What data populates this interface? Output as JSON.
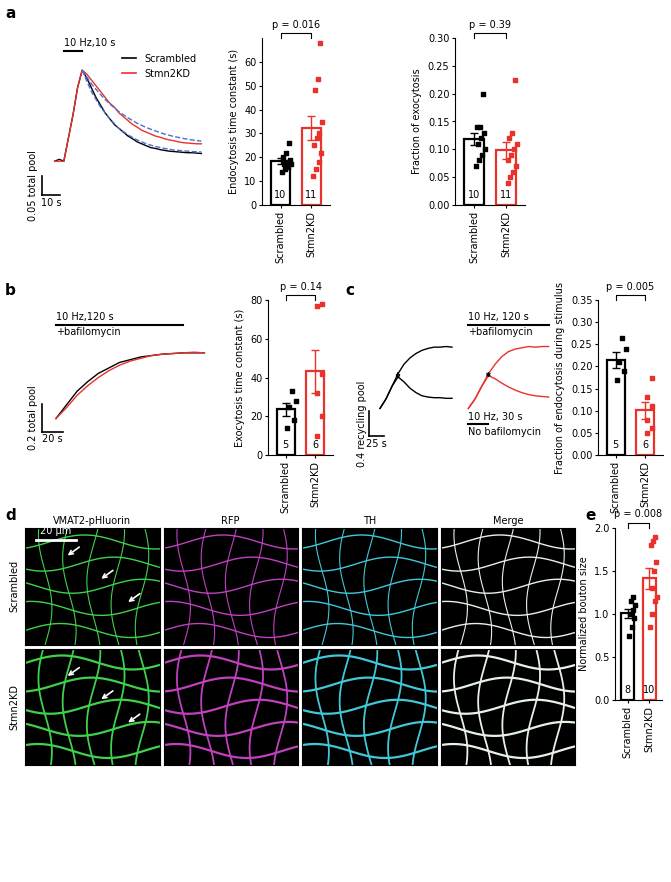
{
  "chart_data": [
    {
      "type": "line",
      "panel": "a",
      "xlim": [
        -8,
        82
      ],
      "ylim": [
        -0.1,
        0.3
      ],
      "tick_labels": false,
      "legend": "upper right",
      "stimuli": [
        {
          "label": "10 Hz,10 s",
          "start": 5,
          "end": 15
        }
      ],
      "scale_bars": {
        "x": {
          "value": 10,
          "label": "10 s"
        },
        "y": {
          "value": 0.05,
          "label": "0.05 total pool"
        }
      },
      "series": [
        {
          "name": "Scrambled",
          "color": "#000000",
          "line_style": "solid",
          "x": [
            0,
            2.5,
            5,
            7.5,
            10,
            12.5,
            15,
            17.5,
            20,
            22.5,
            25,
            27.5,
            30,
            32.5,
            35,
            37.5,
            40,
            42.5,
            45,
            47.5,
            50,
            52.5,
            55,
            57.5,
            60,
            62.5,
            65,
            67.5,
            70,
            72.5,
            75,
            77.5,
            80
          ],
          "values": [
            0,
            0.005,
            0,
            0.06,
            0.12,
            0.19,
            0.235,
            0.215,
            0.19,
            0.165,
            0.145,
            0.125,
            0.11,
            0.095,
            0.085,
            0.075,
            0.065,
            0.058,
            0.05,
            0.045,
            0.04,
            0.035,
            0.033,
            0.03,
            0.028,
            0.026,
            0.025,
            0.024,
            0.023,
            0.022,
            0.022,
            0.021,
            0.02
          ]
        },
        {
          "name": "Stmn2KD",
          "color": "#e8322b",
          "line_style": "solid",
          "x": [
            0,
            2.5,
            5,
            7.5,
            10,
            12.5,
            15,
            17.5,
            20,
            22.5,
            25,
            27.5,
            30,
            32.5,
            35,
            37.5,
            40,
            42.5,
            45,
            47.5,
            50,
            52.5,
            55,
            57.5,
            60,
            62.5,
            65,
            67.5,
            70,
            72.5,
            75,
            77.5,
            80
          ],
          "values": [
            0,
            0,
            0,
            0.06,
            0.12,
            0.19,
            0.235,
            0.225,
            0.21,
            0.195,
            0.18,
            0.165,
            0.15,
            0.14,
            0.125,
            0.115,
            0.105,
            0.095,
            0.088,
            0.08,
            0.075,
            0.07,
            0.065,
            0.062,
            0.058,
            0.055,
            0.053,
            0.05,
            0.048,
            0.047,
            0.046,
            0.045,
            0.045
          ]
        },
        {
          "color": "#4a6fd6",
          "line_style": "dashed",
          "x": [
            15,
            20,
            25,
            30,
            35,
            40,
            45,
            50,
            55,
            60,
            65,
            70,
            75,
            80
          ],
          "values": [
            0.235,
            0.18,
            0.14,
            0.11,
            0.085,
            0.068,
            0.055,
            0.045,
            0.038,
            0.033,
            0.029,
            0.027,
            0.025,
            0.024
          ]
        },
        {
          "color": "#4a6fd6",
          "line_style": "dashed",
          "x": [
            15,
            20,
            25,
            30,
            35,
            40,
            45,
            50,
            55,
            60,
            65,
            70,
            75,
            80
          ],
          "values": [
            0.235,
            0.2,
            0.172,
            0.148,
            0.128,
            0.112,
            0.098,
            0.087,
            0.078,
            0.07,
            0.064,
            0.059,
            0.055,
            0.052
          ]
        }
      ]
    },
    {
      "type": "bar",
      "categories": [
        "Scrambled",
        "Stmn2KD"
      ],
      "values": [
        18.4,
        32.2
      ],
      "errors": [
        1.2,
        5.0
      ],
      "points": [
        [
          14,
          15,
          16,
          17,
          17,
          18,
          19,
          20,
          22,
          26
        ],
        [
          12,
          15,
          18,
          22,
          25,
          28,
          30,
          35,
          48,
          53,
          68
        ]
      ],
      "n": [
        10,
        11
      ],
      "colors": [
        "#000000",
        "#e8322b"
      ],
      "ylabel": "Endocytosis time constant (s)",
      "ylim": [
        0,
        70
      ],
      "yticks": [
        0,
        10,
        20,
        30,
        40,
        50,
        60
      ],
      "p_value": "p = 0.016"
    },
    {
      "type": "bar",
      "categories": [
        "Scrambled",
        "Stmn2KD"
      ],
      "values": [
        0.118,
        0.098
      ],
      "errors": [
        0.011,
        0.016
      ],
      "points": [
        [
          0.07,
          0.08,
          0.09,
          0.1,
          0.11,
          0.12,
          0.13,
          0.14,
          0.14,
          0.2
        ],
        [
          0.04,
          0.05,
          0.06,
          0.07,
          0.08,
          0.09,
          0.1,
          0.11,
          0.12,
          0.13,
          0.225
        ]
      ],
      "n": [
        10,
        11
      ],
      "colors": [
        "#000000",
        "#e8322b"
      ],
      "ylabel": "Fraction of exocytosis",
      "ylim": [
        0,
        0.3
      ],
      "yticks": [
        {
          "value": 0,
          "label": "0.00"
        },
        {
          "value": 0.05,
          "label": "0.05"
        },
        {
          "value": 0.1,
          "label": "0.10"
        },
        {
          "value": 0.15,
          "label": "0.15"
        },
        {
          "value": 0.2,
          "label": "0.20"
        },
        {
          "value": 0.25,
          "label": "0.25"
        },
        {
          "value": 0.3,
          "label": "0.30"
        }
      ],
      "p_value": "p = 0.39"
    },
    {
      "type": "line",
      "panel": "b",
      "xlim": [
        -15,
        150
      ],
      "ylim": [
        -0.12,
        0.72
      ],
      "tick_labels": false,
      "stimuli": [
        {
          "label": "10 Hz,120 s",
          "sublabel": "+bafilomycin",
          "start": 0,
          "end": 120
        }
      ],
      "scale_bars": {
        "x": {
          "value": 20,
          "label": "20 s"
        },
        "y": {
          "value": 0.2,
          "label": "0.2 total pool"
        }
      },
      "series": [
        {
          "name": "Scrambled",
          "color": "#000000",
          "line_style": "solid",
          "x": [
            0,
            10,
            20,
            30,
            40,
            50,
            60,
            70,
            80,
            90,
            100,
            110,
            120,
            130,
            140
          ],
          "values": [
            0,
            0.1,
            0.2,
            0.27,
            0.33,
            0.37,
            0.41,
            0.43,
            0.45,
            0.46,
            0.47,
            0.475,
            0.48,
            0.48,
            0.48
          ]
        },
        {
          "name": "Stmn2KD",
          "color": "#e8322b",
          "line_style": "solid",
          "x": [
            0,
            10,
            20,
            30,
            40,
            50,
            60,
            70,
            80,
            90,
            100,
            110,
            120,
            130,
            140
          ],
          "values": [
            0,
            0.08,
            0.17,
            0.24,
            0.3,
            0.35,
            0.39,
            0.42,
            0.44,
            0.46,
            0.47,
            0.475,
            0.48,
            0.485,
            0.48
          ]
        }
      ]
    },
    {
      "type": "bar",
      "categories": [
        "Scrambled",
        "Stmn2KD"
      ],
      "values": [
        23.6,
        43.2
      ],
      "errors": [
        3.4,
        11.0
      ],
      "points": [
        [
          14,
          18,
          25,
          28,
          33
        ],
        [
          10,
          20,
          32,
          42,
          77,
          78
        ]
      ],
      "n": [
        5,
        6
      ],
      "colors": [
        "#000000",
        "#e8322b"
      ],
      "ylabel": "Exocytosis time constant (s)",
      "ylim": [
        0,
        80
      ],
      "yticks": [
        0,
        20,
        40,
        60,
        80
      ],
      "p_value": "p = 0.14"
    },
    {
      "type": "line",
      "panel": "c",
      "xlim": [
        -20,
        125
      ],
      "ylim": [
        -0.5,
        1.4
      ],
      "tick_labels": false,
      "scale_bars": {
        "x": {
          "value": 25,
          "label": "25 s"
        },
        "y": {
          "value": 0.4,
          "label": "0.4 recycling pool"
        }
      },
      "series": [
        {
          "name": "Scrambled",
          "color": "#000000",
          "line_style": "solid",
          "x": [
            0,
            10,
            20,
            30,
            40,
            50,
            60,
            70,
            80,
            90,
            100,
            110,
            120
          ],
          "values": [
            0,
            0.15,
            0.35,
            0.55,
            0.7,
            0.8,
            0.87,
            0.92,
            0.95,
            0.97,
            0.97,
            0.98,
            0.97
          ]
        },
        {
          "name": "Scrambled",
          "color": "#000000",
          "line_style": "solid",
          "x": [
            0,
            10,
            20,
            30,
            40,
            50,
            60,
            70,
            80,
            90,
            100,
            110,
            120
          ],
          "values": [
            0,
            0.15,
            0.35,
            0.5,
            0.42,
            0.32,
            0.25,
            0.2,
            0.18,
            0.17,
            0.17,
            0.16,
            0.16
          ]
        }
      ]
    },
    {
      "type": "line",
      "xlim": [
        -5,
        125
      ],
      "ylim": [
        -0.5,
        1.4
      ],
      "tick_labels": false,
      "stimuli": [
        {
          "label": "10 Hz, 120 s",
          "sublabel": "+bafilomycin",
          "start": 0,
          "end": 120
        },
        {
          "label": "10 Hz, 30 s",
          "sublabel": "No bafilomycin",
          "start": 0,
          "end": 30
        }
      ],
      "series": [
        {
          "name": "Stmn2KD",
          "color": "#e8322b",
          "line_style": "solid",
          "x": [
            0,
            10,
            20,
            30,
            40,
            50,
            60,
            70,
            80,
            90,
            100,
            110,
            120
          ],
          "values": [
            0,
            0.15,
            0.35,
            0.55,
            0.7,
            0.82,
            0.9,
            0.94,
            0.96,
            0.98,
            0.97,
            0.98,
            0.98
          ]
        },
        {
          "name": "Stmn2KD",
          "color": "#e8322b",
          "line_style": "solid",
          "x": [
            0,
            10,
            20,
            30,
            40,
            50,
            60,
            70,
            80,
            90,
            100,
            110,
            120
          ],
          "values": [
            0,
            0.15,
            0.35,
            0.52,
            0.47,
            0.4,
            0.34,
            0.29,
            0.25,
            0.22,
            0.2,
            0.19,
            0.18
          ]
        }
      ]
    },
    {
      "type": "bar",
      "categories": [
        "Scrambled",
        "Stmn2KD"
      ],
      "values": [
        0.215,
        0.101
      ],
      "errors": [
        0.018,
        0.019
      ],
      "points": [
        [
          0.17,
          0.19,
          0.21,
          0.24,
          0.265
        ],
        [
          0.05,
          0.06,
          0.08,
          0.11,
          0.13,
          0.175
        ]
      ],
      "n": [
        5,
        6
      ],
      "colors": [
        "#000000",
        "#e8322b"
      ],
      "ylabel": "Fraction of endocytosis during stimulus",
      "ylim": [
        0,
        0.35
      ],
      "yticks": [
        {
          "value": 0,
          "label": "0.00"
        },
        {
          "value": 0.05,
          "label": "0.05"
        },
        {
          "value": 0.1,
          "label": "0.10"
        },
        {
          "value": 0.15,
          "label": "0.15"
        },
        {
          "value": 0.2,
          "label": "0.20"
        },
        {
          "value": 0.25,
          "label": "0.25"
        },
        {
          "value": 0.3,
          "label": "0.30"
        },
        {
          "value": 0.35,
          "label": "0.35"
        }
      ],
      "p_value": "p = 0.005"
    },
    {
      "type": "image",
      "panel": "d",
      "columns": [
        "VMAT2-pHluorin",
        "RFP",
        "TH",
        "Merge"
      ],
      "colors": [
        "#3fd14a",
        "#c040c0",
        "#40c8d8",
        "#e6f2e6"
      ],
      "rows": [
        "Scrambled",
        "Stmn2KD"
      ],
      "scale_bar": "20 µm"
    },
    {
      "type": "bar",
      "panel": "e",
      "categories": [
        "Scrambled",
        "Stmn2KD"
      ],
      "values": [
        1.006,
        1.415
      ],
      "errors": [
        0.055,
        0.12
      ],
      "points": [
        [
          0.75,
          0.85,
          0.95,
          1.0,
          1.05,
          1.1,
          1.15,
          1.2
        ],
        [
          0.85,
          1.0,
          1.15,
          1.2,
          1.3,
          1.5,
          1.6,
          1.8,
          1.85,
          1.9
        ]
      ],
      "n": [
        8,
        10
      ],
      "colors": [
        "#000000",
        "#e8322b"
      ],
      "ylabel": "Normalized bouton size",
      "ylim": [
        0,
        2.0
      ],
      "yticks": [
        {
          "value": 0,
          "label": "0.0"
        },
        {
          "value": 0.5,
          "label": "0.5"
        },
        {
          "value": 1.0,
          "label": "1.0"
        },
        {
          "value": 1.5,
          "label": "1.5"
        },
        {
          "value": 2.0,
          "label": "2.0"
        }
      ],
      "p_value": "p = 0.008"
    }
  ]
}
